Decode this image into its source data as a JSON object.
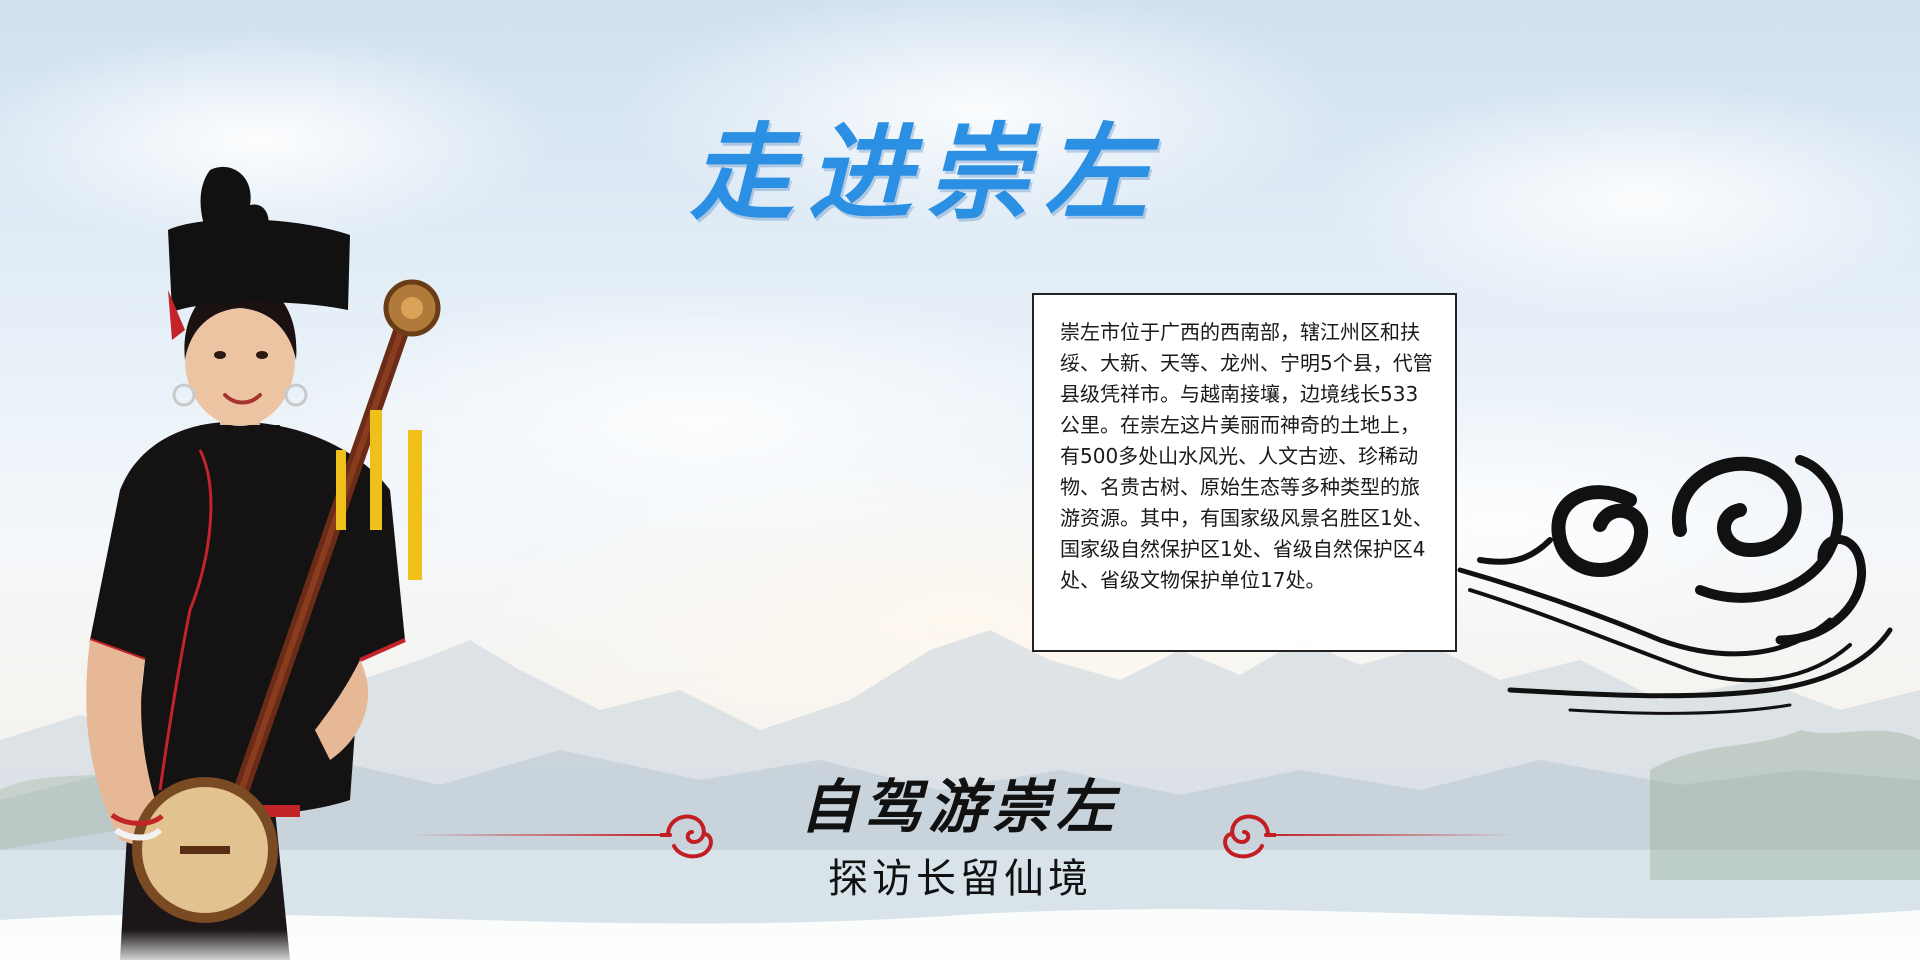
{
  "page": {
    "title": "走进崇左",
    "intro": "崇左市位于广西的西南部，辖江州区和扶绥、大新、天等、龙州、宁明5个县，代管县级凭祥市。与越南接壤，边境线长533公里。在崇左这片美丽而神奇的土地上，有500多处山水风光、人文古迹、珍稀动物、名贵古树、原始生态等多种类型的旅游资源。其中，有国家级风景名胜区1处、国家级自然保护区1处、省级自然保护区4处、省级文物保护单位17处。",
    "slogan_main": "自驾游崇左",
    "slogan_sub": "探访长留仙境"
  },
  "icons": {
    "cloud_swirl": "cloud-swirl-icon",
    "knot": "auspicious-cloud-knot-icon"
  },
  "colors": {
    "title": "#2b8fe3",
    "accent": "#c21f24",
    "text": "#1a1a1a"
  }
}
